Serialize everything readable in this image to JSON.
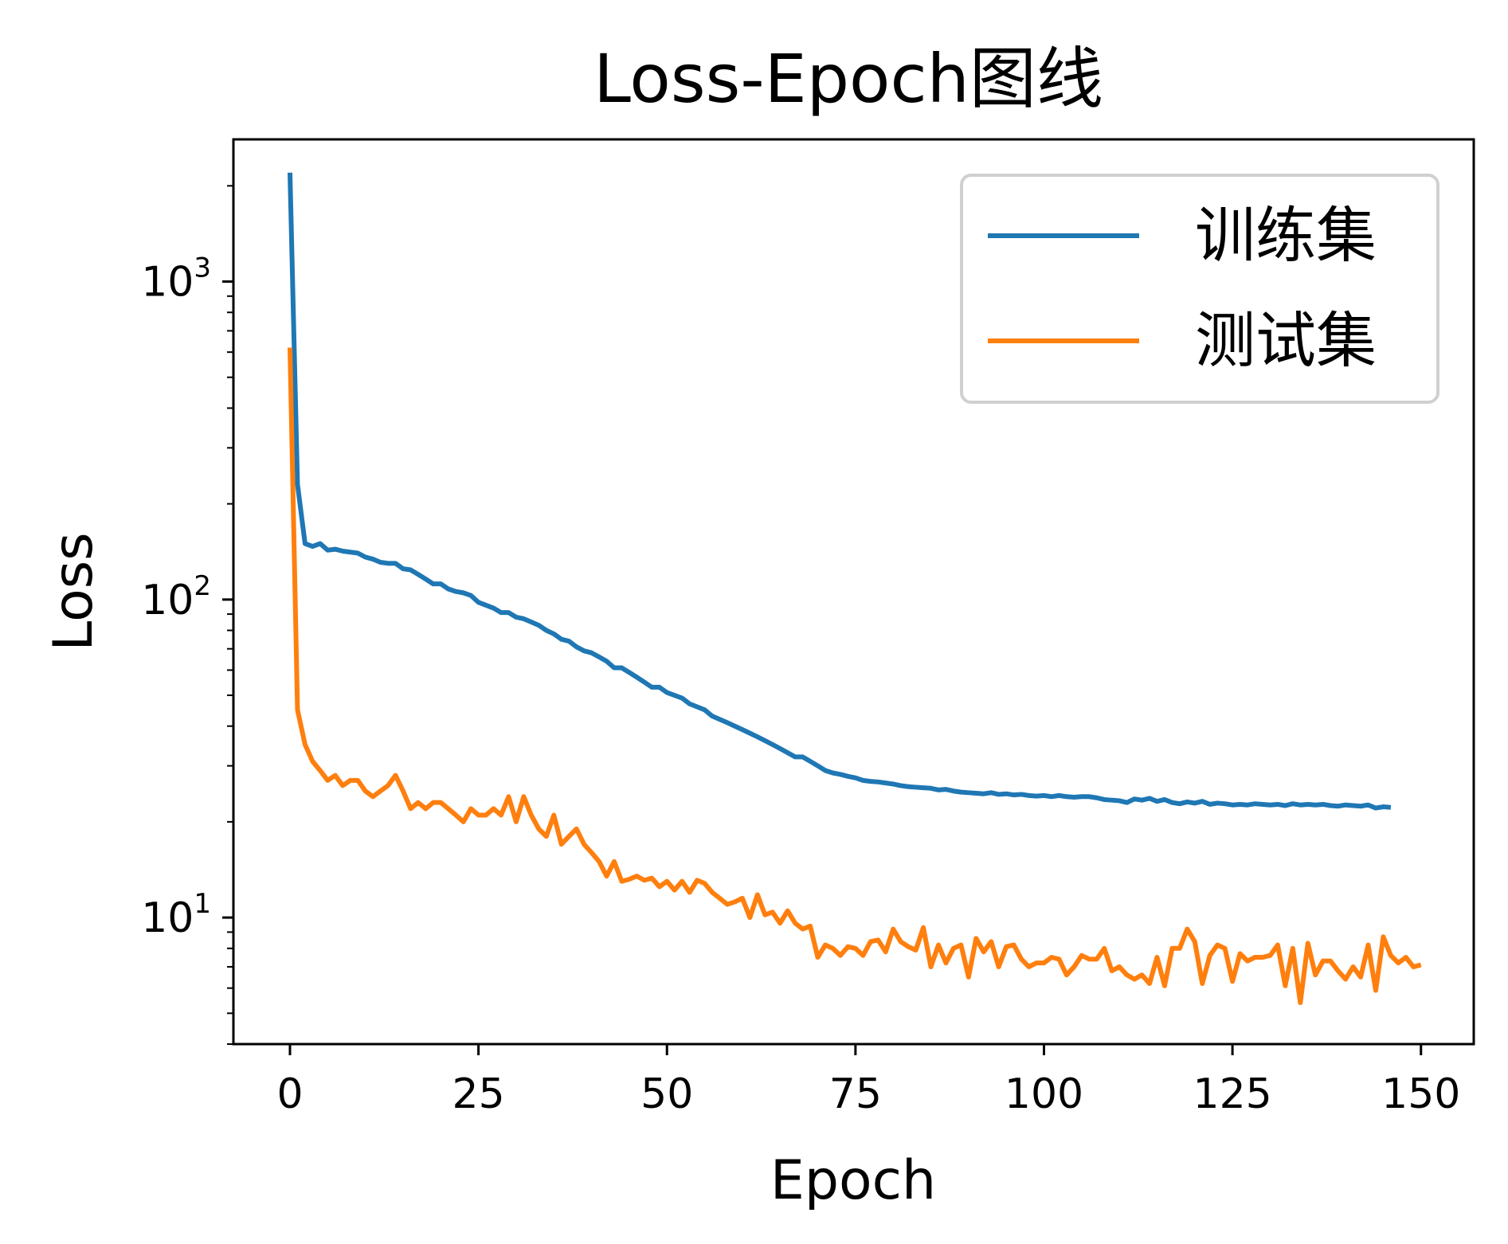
{
  "chart_data": {
    "type": "line",
    "title": "Loss-Epoch图线",
    "xlabel": "Epoch",
    "ylabel": "Loss",
    "xlim": [
      -7.5,
      157
    ],
    "ylim": [
      4,
      2800
    ],
    "yscale": "log",
    "x_ticks": [
      {
        "value": 0,
        "label": "0"
      },
      {
        "value": 25,
        "label": "25"
      },
      {
        "value": 50,
        "label": "50"
      },
      {
        "value": 75,
        "label": "75"
      },
      {
        "value": 100,
        "label": "100"
      },
      {
        "value": 125,
        "label": "125"
      },
      {
        "value": 150,
        "label": "150"
      }
    ],
    "y_ticks": [
      {
        "value": 10,
        "base": "10",
        "exp": "1"
      },
      {
        "value": 100,
        "base": "10",
        "exp": "2"
      },
      {
        "value": 1000,
        "base": "10",
        "exp": "3"
      }
    ],
    "grid": false,
    "legend_position": "top-right",
    "series": [
      {
        "name": "训练集",
        "color": "#1f77b4",
        "values": [
          2200,
          230,
          150,
          147,
          150,
          143,
          144,
          142,
          141,
          140,
          136,
          134,
          131,
          130,
          130,
          125,
          124,
          120,
          116,
          112,
          112,
          108,
          106,
          105,
          103,
          98,
          96,
          94,
          91,
          91,
          88,
          87,
          85,
          83,
          80,
          78,
          75,
          74,
          71,
          69,
          68,
          66,
          64,
          61,
          61,
          59,
          57,
          55,
          53,
          53,
          51,
          50,
          49,
          47,
          46,
          45,
          43,
          42,
          41,
          40,
          39,
          38,
          37,
          36,
          35,
          34,
          33,
          32,
          32,
          31,
          30,
          29,
          28.5,
          28.2,
          27.8,
          27.5,
          27,
          26.8,
          26.7,
          26.5,
          26.3,
          26,
          25.8,
          25.7,
          25.6,
          25.5,
          25.2,
          25.3,
          25,
          24.8,
          24.7,
          24.6,
          24.5,
          24.7,
          24.4,
          24.5,
          24.3,
          24.4,
          24.2,
          24.1,
          24.2,
          24,
          24.2,
          24,
          23.9,
          24,
          24,
          23.8,
          23.5,
          23.4,
          23.3,
          23,
          23.6,
          23.4,
          23.7,
          23.2,
          23.5,
          23,
          22.8,
          23.1,
          22.9,
          23.2,
          22.7,
          22.9,
          22.8,
          22.6,
          22.7,
          22.6,
          22.8,
          22.7,
          22.6,
          22.7,
          22.5,
          22.8,
          22.6,
          22.7,
          22.6,
          22.7,
          22.5,
          22.4,
          22.6,
          22.5,
          22.4,
          22.6,
          22.1,
          22.3,
          22.2
        ],
        "x_start": 0
      },
      {
        "name": "测试集",
        "color": "#ff7f0e",
        "values": [
          620,
          45,
          35,
          31,
          29,
          27,
          28,
          26,
          27,
          27,
          25,
          24,
          25,
          26,
          28,
          25,
          22,
          23,
          22,
          23,
          23,
          22,
          21,
          20,
          22,
          21,
          21,
          22,
          21,
          24,
          20,
          24,
          21,
          19,
          18,
          21,
          17,
          18,
          19,
          17,
          16,
          15,
          13.5,
          15,
          13,
          13.2,
          13.5,
          13.1,
          13.3,
          12.5,
          13,
          12.2,
          13,
          12,
          13.1,
          12.8,
          12,
          11.5,
          11,
          11.2,
          11.5,
          10,
          11.8,
          10.2,
          10.4,
          9.6,
          10.5,
          9.6,
          9.2,
          9.4,
          7.5,
          8.2,
          8,
          7.6,
          8.1,
          8,
          7.6,
          8.4,
          8.5,
          7.8,
          9.2,
          8.4,
          8.1,
          7.9,
          9.3,
          7,
          8.2,
          7.2,
          8,
          8.2,
          6.5,
          8.6,
          7.8,
          8.4,
          7,
          8.1,
          8.2,
          7.4,
          7,
          7.2,
          7.2,
          7.5,
          7.4,
          6.6,
          7,
          7.6,
          7.4,
          7.4,
          8,
          6.8,
          7,
          6.6,
          6.4,
          6.6,
          6.2,
          7.5,
          6.1,
          8,
          8,
          9.2,
          8.4,
          6.2,
          7.6,
          8.2,
          8,
          6.3,
          7.7,
          7.3,
          7.5,
          7.5,
          7.6,
          8.2,
          6.1,
          8,
          5.4,
          8.3,
          6.6,
          7.3,
          7.3,
          6.8,
          6.4,
          7,
          6.5,
          8.2,
          5.9,
          8.7,
          7.6,
          7.2,
          7.5,
          7,
          7.1
        ]
      }
    ]
  }
}
